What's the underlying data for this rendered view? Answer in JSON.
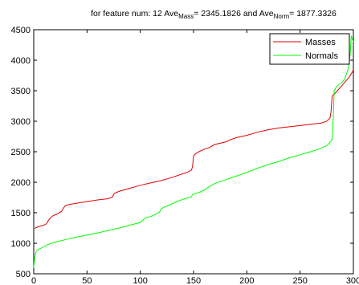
{
  "chart_data": {
    "type": "line",
    "title": {
      "prefix": "for feature num: 12 Ave",
      "sub1": "Mass",
      "mid": "= 2345.1826 and Ave",
      "sub2": "Norm",
      "suffix": "= 1877.3326"
    },
    "xlabel": "",
    "ylabel": "",
    "xlim": [
      0,
      300
    ],
    "ylim": [
      500,
      4500
    ],
    "xticks": [
      "0",
      "50",
      "100",
      "150",
      "200",
      "250",
      "300"
    ],
    "yticks": [
      "500",
      "1000",
      "1500",
      "2000",
      "2500",
      "3000",
      "3500",
      "4000",
      "4500"
    ],
    "grid": false,
    "legend_position": "top-right",
    "series": [
      {
        "name": "Masses",
        "color": "#e00000",
        "x": [
          1,
          2,
          5,
          10,
          12,
          14,
          16,
          18,
          22,
          26,
          28,
          30,
          35,
          45,
          60,
          70,
          74,
          75,
          76,
          80,
          90,
          100,
          110,
          120,
          130,
          140,
          145,
          148,
          149,
          150,
          152,
          155,
          160,
          165,
          170,
          175,
          180,
          185,
          190,
          200,
          210,
          220,
          230,
          240,
          250,
          260,
          270,
          275,
          278,
          279,
          280,
          281,
          283,
          285,
          288,
          290,
          292,
          294,
          295,
          296,
          297,
          298,
          299,
          300
        ],
        "y": [
          1240,
          1255,
          1275,
          1300,
          1320,
          1380,
          1420,
          1450,
          1480,
          1520,
          1580,
          1620,
          1640,
          1670,
          1710,
          1730,
          1760,
          1800,
          1820,
          1850,
          1900,
          1950,
          1990,
          2030,
          2080,
          2140,
          2170,
          2200,
          2250,
          2430,
          2470,
          2500,
          2540,
          2570,
          2620,
          2640,
          2660,
          2700,
          2730,
          2770,
          2820,
          2860,
          2890,
          2910,
          2930,
          2950,
          2970,
          3000,
          3050,
          3150,
          3400,
          3430,
          3460,
          3500,
          3560,
          3600,
          3640,
          3680,
          3700,
          3720,
          3750,
          3780,
          3800,
          3850
        ]
      },
      {
        "name": "Normals",
        "color": "#00ff00",
        "x": [
          0,
          0.5,
          1,
          2,
          3,
          4,
          6,
          8,
          10,
          12,
          15,
          20,
          30,
          40,
          60,
          80,
          100,
          103,
          105,
          110,
          115,
          118,
          120,
          125,
          130,
          140,
          148,
          149,
          150,
          155,
          160,
          165,
          170,
          180,
          190,
          200,
          210,
          220,
          230,
          240,
          250,
          260,
          270,
          275,
          278,
          280,
          281,
          282,
          284,
          286,
          288,
          290,
          292,
          294,
          295,
          296,
          297,
          298,
          299,
          300
        ],
        "y": [
          600,
          700,
          780,
          850,
          880,
          900,
          910,
          930,
          950,
          970,
          990,
          1020,
          1060,
          1100,
          1170,
          1250,
          1340,
          1390,
          1420,
          1440,
          1480,
          1510,
          1570,
          1610,
          1650,
          1720,
          1760,
          1800,
          1810,
          1830,
          1870,
          1930,
          1980,
          2040,
          2100,
          2160,
          2230,
          2290,
          2340,
          2400,
          2450,
          2500,
          2560,
          2600,
          2650,
          2700,
          3000,
          3500,
          3560,
          3600,
          3620,
          3650,
          3700,
          3800,
          3850,
          3950,
          4100,
          4400,
          4350,
          4300
        ]
      }
    ]
  }
}
